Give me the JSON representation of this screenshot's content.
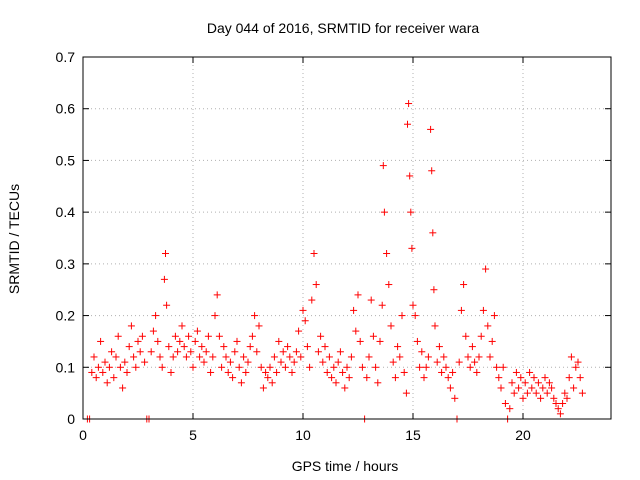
{
  "chart_data": {
    "type": "scatter",
    "title": "Day 044 of 2016, SRMTID for receiver wara",
    "xlabel": "GPS time / hours",
    "ylabel": "SRMTID / TECUs",
    "xlim": [
      0,
      24
    ],
    "ylim": [
      0,
      0.7
    ],
    "x_ticks": [
      0,
      5,
      10,
      15,
      20
    ],
    "x_tick_labels": [
      "0",
      "5",
      "10",
      "15",
      "20"
    ],
    "y_ticks": [
      0,
      0.1,
      0.2,
      0.3,
      0.4,
      0.5,
      0.6,
      0.7
    ],
    "y_tick_labels": [
      "0",
      "0.1",
      "0.2",
      "0.3",
      "0.4",
      "0.5",
      "0.6",
      "0.7"
    ],
    "grid": true,
    "marker": "+",
    "color": "#ff0000",
    "series": [
      {
        "name": "SRMTID",
        "points": [
          [
            0.2,
            0.0
          ],
          [
            0.3,
            0.0
          ],
          [
            0.4,
            0.09
          ],
          [
            0.5,
            0.12
          ],
          [
            0.6,
            0.08
          ],
          [
            0.7,
            0.1
          ],
          [
            0.8,
            0.15
          ],
          [
            0.9,
            0.09
          ],
          [
            1.0,
            0.11
          ],
          [
            1.1,
            0.07
          ],
          [
            1.2,
            0.1
          ],
          [
            1.3,
            0.13
          ],
          [
            1.4,
            0.08
          ],
          [
            1.5,
            0.12
          ],
          [
            1.6,
            0.16
          ],
          [
            1.7,
            0.1
          ],
          [
            1.8,
            0.06
          ],
          [
            1.9,
            0.11
          ],
          [
            2.0,
            0.09
          ],
          [
            2.1,
            0.14
          ],
          [
            2.2,
            0.18
          ],
          [
            2.3,
            0.12
          ],
          [
            2.4,
            0.1
          ],
          [
            2.5,
            0.15
          ],
          [
            2.6,
            0.13
          ],
          [
            2.7,
            0.16
          ],
          [
            2.8,
            0.11
          ],
          [
            2.9,
            0.0
          ],
          [
            3.0,
            0.0
          ],
          [
            3.1,
            0.13
          ],
          [
            3.2,
            0.17
          ],
          [
            3.3,
            0.2
          ],
          [
            3.4,
            0.15
          ],
          [
            3.5,
            0.12
          ],
          [
            3.6,
            0.1
          ],
          [
            3.7,
            0.27
          ],
          [
            3.75,
            0.32
          ],
          [
            3.8,
            0.22
          ],
          [
            3.9,
            0.14
          ],
          [
            4.0,
            0.09
          ],
          [
            4.1,
            0.12
          ],
          [
            4.2,
            0.16
          ],
          [
            4.3,
            0.13
          ],
          [
            4.4,
            0.15
          ],
          [
            4.5,
            0.18
          ],
          [
            4.6,
            0.14
          ],
          [
            4.7,
            0.12
          ],
          [
            4.8,
            0.16
          ],
          [
            4.9,
            0.13
          ],
          [
            5.0,
            0.1
          ],
          [
            5.1,
            0.15
          ],
          [
            5.2,
            0.17
          ],
          [
            5.3,
            0.12
          ],
          [
            5.4,
            0.14
          ],
          [
            5.5,
            0.11
          ],
          [
            5.6,
            0.13
          ],
          [
            5.7,
            0.16
          ],
          [
            5.8,
            0.09
          ],
          [
            5.9,
            0.12
          ],
          [
            6.0,
            0.2
          ],
          [
            6.1,
            0.24
          ],
          [
            6.2,
            0.16
          ],
          [
            6.3,
            0.1
          ],
          [
            6.4,
            0.14
          ],
          [
            6.5,
            0.12
          ],
          [
            6.6,
            0.09
          ],
          [
            6.7,
            0.11
          ],
          [
            6.8,
            0.08
          ],
          [
            6.9,
            0.13
          ],
          [
            7.0,
            0.15
          ],
          [
            7.1,
            0.1
          ],
          [
            7.2,
            0.07
          ],
          [
            7.3,
            0.12
          ],
          [
            7.4,
            0.09
          ],
          [
            7.5,
            0.11
          ],
          [
            7.6,
            0.14
          ],
          [
            7.7,
            0.16
          ],
          [
            7.8,
            0.2
          ],
          [
            7.9,
            0.13
          ],
          [
            8.0,
            0.18
          ],
          [
            8.1,
            0.1
          ],
          [
            8.2,
            0.06
          ],
          [
            8.3,
            0.09
          ],
          [
            8.4,
            0.08
          ],
          [
            8.5,
            0.1
          ],
          [
            8.6,
            0.07
          ],
          [
            8.7,
            0.12
          ],
          [
            8.8,
            0.09
          ],
          [
            8.9,
            0.15
          ],
          [
            9.0,
            0.11
          ],
          [
            9.1,
            0.13
          ],
          [
            9.2,
            0.1
          ],
          [
            9.3,
            0.14
          ],
          [
            9.4,
            0.12
          ],
          [
            9.5,
            0.09
          ],
          [
            9.6,
            0.11
          ],
          [
            9.7,
            0.13
          ],
          [
            9.8,
            0.17
          ],
          [
            9.9,
            0.12
          ],
          [
            10.0,
            0.21
          ],
          [
            10.1,
            0.19
          ],
          [
            10.2,
            0.14
          ],
          [
            10.3,
            0.1
          ],
          [
            10.4,
            0.23
          ],
          [
            10.5,
            0.32
          ],
          [
            10.6,
            0.26
          ],
          [
            10.7,
            0.13
          ],
          [
            10.8,
            0.16
          ],
          [
            10.9,
            0.11
          ],
          [
            11.0,
            0.14
          ],
          [
            11.1,
            0.09
          ],
          [
            11.2,
            0.12
          ],
          [
            11.3,
            0.08
          ],
          [
            11.4,
            0.1
          ],
          [
            11.5,
            0.07
          ],
          [
            11.6,
            0.11
          ],
          [
            11.7,
            0.13
          ],
          [
            11.8,
            0.09
          ],
          [
            11.9,
            0.06
          ],
          [
            12.0,
            0.1
          ],
          [
            12.1,
            0.08
          ],
          [
            12.2,
            0.12
          ],
          [
            12.3,
            0.21
          ],
          [
            12.4,
            0.17
          ],
          [
            12.5,
            0.24
          ],
          [
            12.6,
            0.15
          ],
          [
            12.7,
            0.1
          ],
          [
            12.8,
            0.0
          ],
          [
            12.9,
            0.08
          ],
          [
            13.0,
            0.12
          ],
          [
            13.1,
            0.23
          ],
          [
            13.2,
            0.16
          ],
          [
            13.3,
            0.1
          ],
          [
            13.4,
            0.07
          ],
          [
            13.5,
            0.15
          ],
          [
            13.6,
            0.22
          ],
          [
            13.65,
            0.49
          ],
          [
            13.7,
            0.4
          ],
          [
            13.8,
            0.32
          ],
          [
            13.9,
            0.26
          ],
          [
            14.0,
            0.18
          ],
          [
            14.1,
            0.11
          ],
          [
            14.2,
            0.08
          ],
          [
            14.3,
            0.14
          ],
          [
            14.4,
            0.12
          ],
          [
            14.5,
            0.2
          ],
          [
            14.6,
            0.09
          ],
          [
            14.7,
            0.05
          ],
          [
            14.75,
            0.57
          ],
          [
            14.8,
            0.61
          ],
          [
            14.85,
            0.47
          ],
          [
            14.9,
            0.4
          ],
          [
            14.95,
            0.33
          ],
          [
            15.0,
            0.22
          ],
          [
            15.1,
            0.2
          ],
          [
            15.2,
            0.15
          ],
          [
            15.3,
            0.1
          ],
          [
            15.4,
            0.13
          ],
          [
            15.5,
            0.08
          ],
          [
            15.6,
            0.1
          ],
          [
            15.7,
            0.12
          ],
          [
            15.8,
            0.56
          ],
          [
            15.85,
            0.48
          ],
          [
            15.9,
            0.36
          ],
          [
            15.95,
            0.25
          ],
          [
            16.0,
            0.18
          ],
          [
            16.1,
            0.11
          ],
          [
            16.2,
            0.14
          ],
          [
            16.3,
            0.09
          ],
          [
            16.4,
            0.12
          ],
          [
            16.5,
            0.1
          ],
          [
            16.6,
            0.08
          ],
          [
            16.7,
            0.06
          ],
          [
            16.8,
            0.09
          ],
          [
            16.9,
            0.04
          ],
          [
            17.0,
            0.0
          ],
          [
            17.1,
            0.11
          ],
          [
            17.2,
            0.21
          ],
          [
            17.3,
            0.26
          ],
          [
            17.4,
            0.16
          ],
          [
            17.5,
            0.12
          ],
          [
            17.6,
            0.1
          ],
          [
            17.7,
            0.14
          ],
          [
            17.8,
            0.11
          ],
          [
            17.9,
            0.09
          ],
          [
            18.0,
            0.12
          ],
          [
            18.1,
            0.16
          ],
          [
            18.2,
            0.21
          ],
          [
            18.3,
            0.29
          ],
          [
            18.4,
            0.18
          ],
          [
            18.5,
            0.12
          ],
          [
            18.6,
            0.15
          ],
          [
            18.7,
            0.2
          ],
          [
            18.8,
            0.1
          ],
          [
            18.9,
            0.08
          ],
          [
            19.0,
            0.06
          ],
          [
            19.1,
            0.1
          ],
          [
            19.2,
            0.03
          ],
          [
            19.3,
            0.0
          ],
          [
            19.4,
            0.02
          ],
          [
            19.5,
            0.07
          ],
          [
            19.6,
            0.05
          ],
          [
            19.7,
            0.09
          ],
          [
            19.8,
            0.06
          ],
          [
            19.9,
            0.08
          ],
          [
            20.0,
            0.04
          ],
          [
            20.1,
            0.07
          ],
          [
            20.2,
            0.05
          ],
          [
            20.3,
            0.09
          ],
          [
            20.4,
            0.06
          ],
          [
            20.5,
            0.08
          ],
          [
            20.6,
            0.05
          ],
          [
            20.7,
            0.07
          ],
          [
            20.8,
            0.04
          ],
          [
            20.9,
            0.06
          ],
          [
            21.0,
            0.08
          ],
          [
            21.1,
            0.05
          ],
          [
            21.2,
            0.07
          ],
          [
            21.3,
            0.06
          ],
          [
            21.4,
            0.04
          ],
          [
            21.5,
            0.03
          ],
          [
            21.6,
            0.02
          ],
          [
            21.7,
            0.01
          ],
          [
            21.8,
            0.03
          ],
          [
            21.9,
            0.05
          ],
          [
            22.0,
            0.04
          ],
          [
            22.1,
            0.08
          ],
          [
            22.2,
            0.12
          ],
          [
            22.3,
            0.06
          ],
          [
            22.4,
            0.1
          ],
          [
            22.5,
            0.11
          ],
          [
            22.6,
            0.08
          ],
          [
            22.7,
            0.05
          ]
        ]
      }
    ]
  }
}
